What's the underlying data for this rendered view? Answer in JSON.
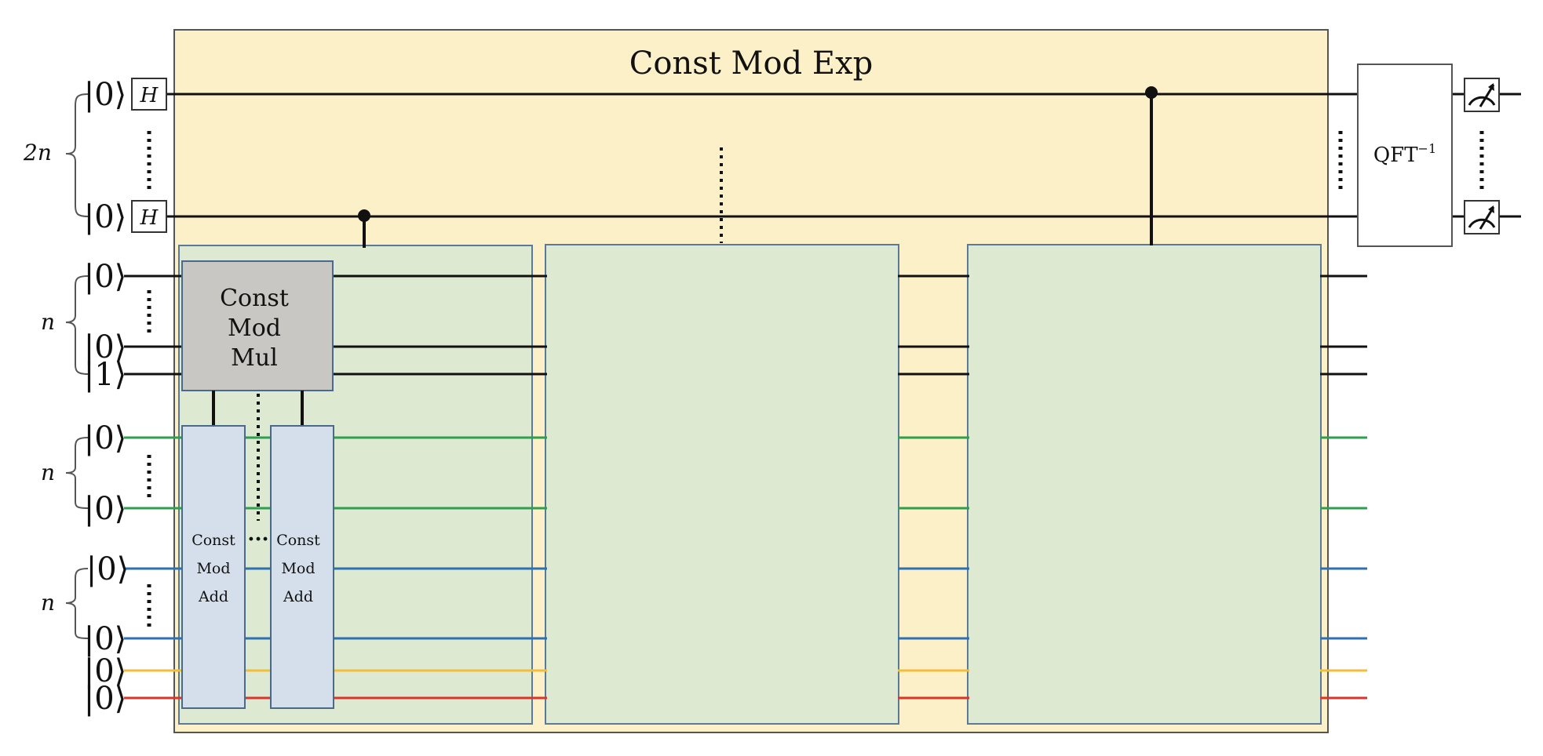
{
  "diagram": {
    "title": "Const Mod Exp",
    "gate_h": "H",
    "qft_base": "QFT",
    "qft_sup": "−1",
    "mul_block": [
      "Const",
      "Mod",
      "Mul"
    ],
    "add_block": [
      "Const",
      "Mod",
      "Add"
    ],
    "ellipsis_h": "···",
    "register_labels": {
      "control": "2n",
      "reg_a": "n",
      "reg_b": "n",
      "reg_c": "n"
    },
    "kets": {
      "zero": "|0⟩",
      "one": "|1⟩"
    },
    "wire_colors": {
      "black": "#111111",
      "green": "#2e9e4f",
      "blue": "#2f6fb3",
      "yellow": "#f2be3a",
      "red": "#d9352a"
    },
    "fill_colors": {
      "outer": "#fcf0c8",
      "stage": "#dde9d1",
      "mul": "#c8c7c4",
      "add": "#d5dfec"
    }
  }
}
